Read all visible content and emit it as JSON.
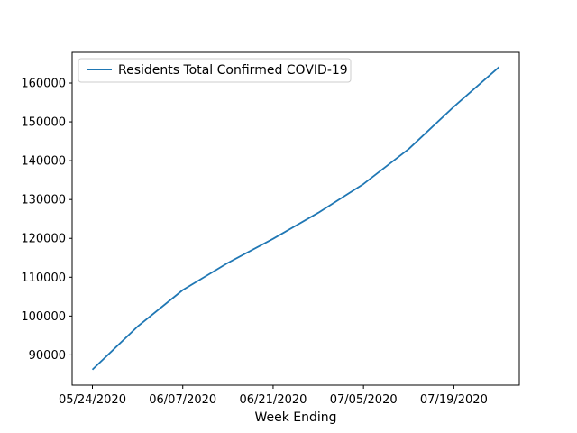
{
  "chart_data": {
    "type": "line",
    "title": "",
    "xlabel": "Week Ending",
    "ylabel": "",
    "x": [
      "05/24/2020",
      "05/31/2020",
      "06/07/2020",
      "06/14/2020",
      "06/21/2020",
      "06/28/2020",
      "07/05/2020",
      "07/12/2020",
      "07/19/2020",
      "07/26/2020"
    ],
    "x_tick_labels": [
      "05/24/2020",
      "06/07/2020",
      "06/21/2020",
      "07/05/2020",
      "07/19/2020"
    ],
    "y_ticks": [
      90000,
      100000,
      110000,
      120000,
      130000,
      140000,
      150000,
      160000
    ],
    "ylim": [
      82200,
      167900
    ],
    "grid": false,
    "legend_position": "top-left",
    "series": [
      {
        "name": "Residents Total Confirmed COVID-19",
        "color": "#1f77b4",
        "values": [
          86200,
          97300,
          106700,
          113700,
          119900,
          126600,
          134000,
          143000,
          153900,
          164100
        ]
      }
    ]
  }
}
